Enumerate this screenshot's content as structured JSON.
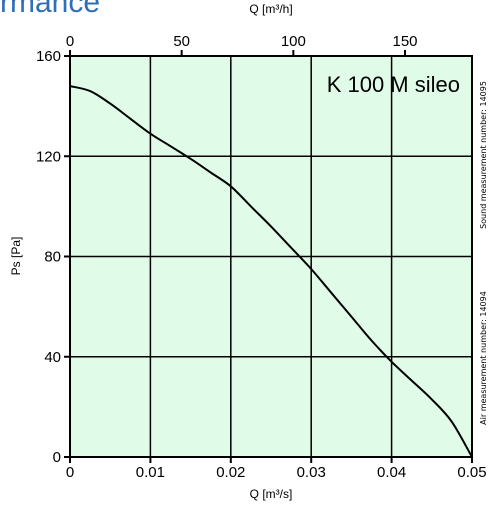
{
  "header": {
    "title": "rmance"
  },
  "chart_data": {
    "type": "line",
    "title": "K 100 M sileo",
    "xlabel": "Q [m³/s]",
    "ylabel": "Ps [Pa]",
    "x2label": "Q [m³/h]",
    "xlim": [
      0,
      0.05
    ],
    "ylim": [
      0,
      160
    ],
    "x2lim": [
      0,
      180
    ],
    "xticks": [
      0,
      0.01,
      0.02,
      0.03,
      0.04,
      0.05
    ],
    "xtick_labels": [
      "0",
      "0.01",
      "0.02",
      "0.03",
      "0.04",
      "0.05"
    ],
    "yticks": [
      0,
      40,
      80,
      120,
      160
    ],
    "ytick_labels": [
      "0",
      "40",
      "80",
      "120",
      "160"
    ],
    "x2ticks": [
      0,
      50,
      100,
      150
    ],
    "x2tick_labels": [
      "0",
      "50",
      "100",
      "150"
    ],
    "grid": true,
    "background": "#e0fbe8",
    "series": [
      {
        "x": [
          0,
          0.0025,
          0.005,
          0.0075,
          0.01,
          0.0125,
          0.015,
          0.0175,
          0.02,
          0.0225,
          0.025,
          0.0275,
          0.03,
          0.0325,
          0.035,
          0.0375,
          0.04,
          0.0425,
          0.045,
          0.0475,
          0.05
        ],
        "y": [
          148,
          146,
          141,
          135,
          129,
          124,
          119,
          113.5,
          108,
          100,
          92,
          83.5,
          75,
          65.5,
          56,
          46.5,
          38,
          30.5,
          23,
          14,
          0
        ]
      }
    ],
    "side_notes": [
      "Sound measurement number: 14095",
      "Air measurement number: 14094"
    ]
  }
}
